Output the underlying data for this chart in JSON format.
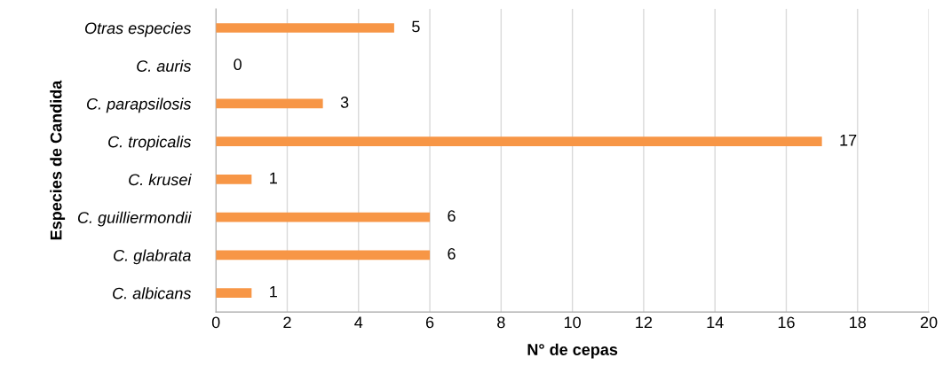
{
  "chart_data": {
    "type": "bar",
    "orientation": "horizontal",
    "xlabel": "N° de cepas",
    "ylabel": "Especies de Candida",
    "categories": [
      "Otras especies",
      "C. auris",
      "C. parapsilosis",
      "C. tropicalis",
      "C. krusei",
      "C. guilliermondii",
      "C. glabrata",
      "C. albicans"
    ],
    "values": [
      5,
      0,
      3,
      17,
      1,
      6,
      6,
      1
    ],
    "color": "#f79646",
    "xlim": [
      0,
      20
    ],
    "xticks": [
      0,
      2,
      4,
      6,
      8,
      10,
      12,
      14,
      16,
      18,
      20
    ],
    "grid": "x",
    "data_labels": true
  }
}
